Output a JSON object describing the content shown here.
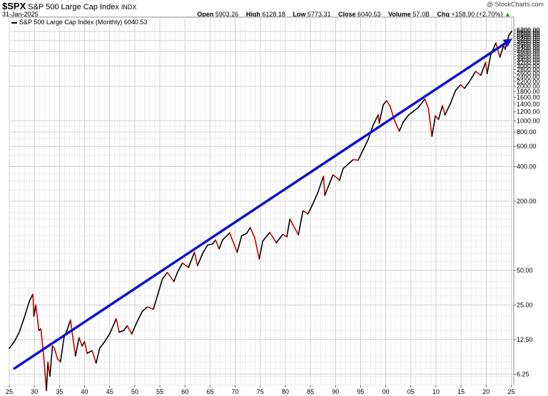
{
  "header": {
    "symbol": "$SPX",
    "name": "S&P 500 Large Cap Index",
    "exchange": "INDX",
    "date": "31-Jan-2025",
    "brand": "@ StockCharts.com",
    "open_label": "Open",
    "open": "5903.26",
    "high_label": "High",
    "high": "6128.18",
    "low_label": "Low",
    "low": "5773.31",
    "close_label": "Close",
    "close": "6040.53",
    "volume_label": "Volume",
    "volume": "57.0B",
    "chg_label": "Chg",
    "chg": "+158.90 (+2.70%)",
    "chg_arrow": "▲"
  },
  "legend": {
    "label": "S&P 500 Large Cap Index (Monthly) 6040.53"
  },
  "chart_data": {
    "type": "line",
    "yscale": "log",
    "ylim": [
      5,
      8000
    ],
    "xlim": [
      1925,
      2025.5
    ],
    "x_ticks": [
      "25",
      "30",
      "35",
      "40",
      "45",
      "50",
      "55",
      "60",
      "65",
      "70",
      "75",
      "80",
      "85",
      "90",
      "95",
      "00",
      "05",
      "10",
      "15",
      "20",
      "25"
    ],
    "y_ticks": [
      6.25,
      12.5,
      25,
      50,
      200,
      400,
      600,
      800,
      1000,
      1200,
      1400,
      1600,
      1800,
      2000,
      2200,
      2400,
      2600,
      2800,
      3000,
      3200,
      3400,
      3600,
      3800,
      4000,
      4200,
      4400,
      4600,
      4800,
      5000,
      5200,
      5400,
      5600,
      5800,
      6000,
      6200
    ],
    "y_tick_labels": [
      "6.25",
      "12.50",
      "25.00",
      "50.00",
      "200.00",
      "400.00",
      "600.00",
      "800.00",
      "1000.00",
      "1200.00",
      "1400.00",
      "1600.00",
      "1800.00",
      "2000.00",
      "2200.00",
      "2400.00",
      "2600.00",
      "2800.00",
      "3000.00",
      "3200.00",
      "3400.00",
      "3600.00",
      "3800.00",
      "4000.00",
      "4200.00",
      "4400.00",
      "4600.00",
      "4800.00",
      "5000.00",
      "5200.00",
      "5400.00",
      "5600.00",
      "5800.00",
      "6000.00",
      "6200.00"
    ],
    "grid": true,
    "series": [
      {
        "name": "S&P 500 Large Cap Index (Monthly)",
        "color_up": "#000000",
        "color_down": "#cc0000",
        "points": [
          [
            1925.0,
            10.5
          ],
          [
            1926.0,
            12.0
          ],
          [
            1927.0,
            14.5
          ],
          [
            1928.0,
            19.5
          ],
          [
            1929.0,
            27.0
          ],
          [
            1929.7,
            31.0
          ],
          [
            1929.9,
            20.0
          ],
          [
            1930.3,
            25.0
          ],
          [
            1930.9,
            15.0
          ],
          [
            1931.3,
            15.5
          ],
          [
            1931.9,
            8.5
          ],
          [
            1932.4,
            4.5
          ],
          [
            1932.7,
            8.0
          ],
          [
            1933.1,
            6.0
          ],
          [
            1933.6,
            11.0
          ],
          [
            1934.0,
            10.5
          ],
          [
            1934.6,
            8.5
          ],
          [
            1935.2,
            8.0
          ],
          [
            1935.9,
            13.0
          ],
          [
            1936.5,
            15.0
          ],
          [
            1937.2,
            18.5
          ],
          [
            1937.9,
            11.0
          ],
          [
            1938.2,
            9.0
          ],
          [
            1938.9,
            13.0
          ],
          [
            1939.5,
            11.0
          ],
          [
            1940.0,
            12.0
          ],
          [
            1940.5,
            9.5
          ],
          [
            1941.5,
            10.0
          ],
          [
            1942.3,
            7.8
          ],
          [
            1943.0,
            10.5
          ],
          [
            1944.0,
            12.0
          ],
          [
            1945.0,
            14.0
          ],
          [
            1946.3,
            19.0
          ],
          [
            1946.9,
            14.5
          ],
          [
            1947.8,
            15.0
          ],
          [
            1948.5,
            16.5
          ],
          [
            1949.4,
            14.0
          ],
          [
            1950.5,
            18.0
          ],
          [
            1951.5,
            22.0
          ],
          [
            1952.5,
            24.0
          ],
          [
            1953.7,
            23.0
          ],
          [
            1954.5,
            30.0
          ],
          [
            1955.5,
            42.0
          ],
          [
            1956.5,
            48.0
          ],
          [
            1957.8,
            40.0
          ],
          [
            1958.5,
            48.0
          ],
          [
            1959.5,
            58.0
          ],
          [
            1960.7,
            53.0
          ],
          [
            1961.9,
            72.0
          ],
          [
            1962.5,
            55.0
          ],
          [
            1963.5,
            70.0
          ],
          [
            1964.5,
            83.0
          ],
          [
            1965.5,
            85.0
          ],
          [
            1966.1,
            92.0
          ],
          [
            1966.8,
            77.0
          ],
          [
            1967.5,
            92.0
          ],
          [
            1968.9,
            106.0
          ],
          [
            1970.4,
            72.0
          ],
          [
            1971.3,
            100.0
          ],
          [
            1972.3,
            105.0
          ],
          [
            1973.0,
            118.0
          ],
          [
            1973.9,
            96.0
          ],
          [
            1974.8,
            63.0
          ],
          [
            1975.5,
            90.0
          ],
          [
            1976.9,
            107.0
          ],
          [
            1978.2,
            87.0
          ],
          [
            1979.5,
            103.0
          ],
          [
            1980.3,
            98.0
          ],
          [
            1980.9,
            140.0
          ],
          [
            1981.5,
            125.0
          ],
          [
            1982.6,
            102.0
          ],
          [
            1983.5,
            165.0
          ],
          [
            1984.5,
            155.0
          ],
          [
            1985.5,
            190.0
          ],
          [
            1986.5,
            240.0
          ],
          [
            1987.6,
            330.0
          ],
          [
            1987.85,
            225.0
          ],
          [
            1988.5,
            265.0
          ],
          [
            1989.5,
            340.0
          ],
          [
            1990.8,
            305.0
          ],
          [
            1991.5,
            385.0
          ],
          [
            1992.5,
            420.0
          ],
          [
            1993.5,
            460.0
          ],
          [
            1994.5,
            455.0
          ],
          [
            1995.5,
            560.0
          ],
          [
            1996.5,
            690.0
          ],
          [
            1997.5,
            920.0
          ],
          [
            1998.5,
            1130.0
          ],
          [
            1998.7,
            960.0
          ],
          [
            1999.5,
            1380.0
          ],
          [
            2000.2,
            1500.0
          ],
          [
            2000.9,
            1330.0
          ],
          [
            2001.7,
            1020.0
          ],
          [
            2002.7,
            815.0
          ],
          [
            2003.5,
            980.0
          ],
          [
            2004.5,
            1120.0
          ],
          [
            2005.5,
            1210.0
          ],
          [
            2006.5,
            1310.0
          ],
          [
            2007.8,
            1550.0
          ],
          [
            2008.5,
            1280.0
          ],
          [
            2009.2,
            735.0
          ],
          [
            2009.9,
            1110.0
          ],
          [
            2010.5,
            1030.0
          ],
          [
            2011.3,
            1360.0
          ],
          [
            2011.8,
            1130.0
          ],
          [
            2012.9,
            1420.0
          ],
          [
            2013.9,
            1840.0
          ],
          [
            2014.9,
            2060.0
          ],
          [
            2015.7,
            1920.0
          ],
          [
            2016.6,
            2170.0
          ],
          [
            2017.9,
            2700.0
          ],
          [
            2018.95,
            2500.0
          ],
          [
            2019.9,
            3230.0
          ],
          [
            2020.2,
            2580.0
          ],
          [
            2020.9,
            3750.0
          ],
          [
            2021.95,
            4770.0
          ],
          [
            2022.75,
            3590.0
          ],
          [
            2023.5,
            4580.0
          ],
          [
            2023.8,
            4190.0
          ],
          [
            2024.5,
            5520.0
          ],
          [
            2024.9,
            5880.0
          ],
          [
            2025.08,
            6040.0
          ]
        ]
      }
    ],
    "trendline": {
      "color": "#1111cc",
      "start": [
        1926.0,
        7.0
      ],
      "end": [
        2025.2,
        5200.0
      ]
    }
  }
}
